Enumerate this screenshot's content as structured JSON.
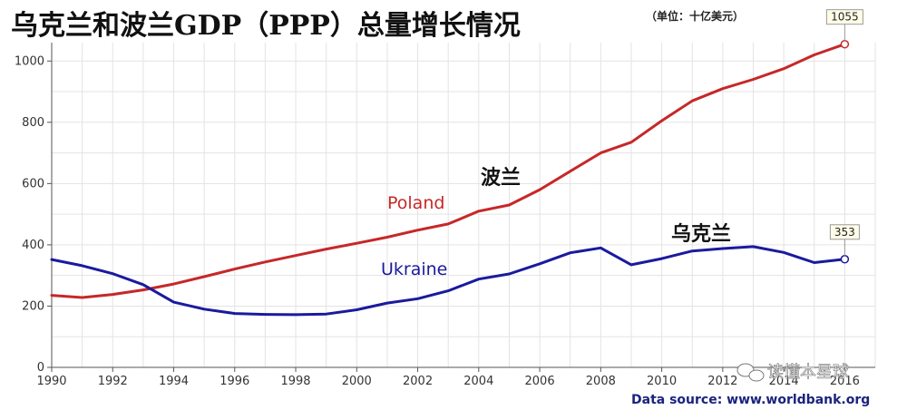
{
  "chart_data": {
    "type": "line",
    "title": "乌克兰和波兰GDP（PPP）总量增长情况",
    "unit_note": "（单位：十亿美元）",
    "x": [
      1990,
      1991,
      1992,
      1993,
      1994,
      1995,
      1996,
      1997,
      1998,
      1999,
      2000,
      2001,
      2002,
      2003,
      2004,
      2005,
      2006,
      2007,
      2008,
      2009,
      2010,
      2011,
      2012,
      2013,
      2014,
      2015,
      2016
    ],
    "xticks": [
      "1990",
      "1992",
      "1994",
      "1996",
      "1998",
      "2000",
      "2002",
      "2004",
      "2006",
      "2008",
      "2010",
      "2012",
      "2014",
      "2016"
    ],
    "yticks": [
      "0",
      "200",
      "400",
      "600",
      "800",
      "1000"
    ],
    "xlim": [
      1990,
      2017
    ],
    "ylim": [
      0,
      1060
    ],
    "grid": true,
    "series": [
      {
        "name": "Poland",
        "alt_label": "波兰",
        "color": "#c62828",
        "values": [
          235,
          228,
          238,
          253,
          272,
          296,
          321,
          344,
          365,
          386,
          405,
          425,
          448,
          468,
          510,
          530,
          580,
          640,
          700,
          735,
          805,
          870,
          910,
          940,
          975,
          1020,
          1055
        ],
        "end_label": "1055"
      },
      {
        "name": "Ukraine",
        "alt_label": "乌克兰",
        "color": "#1a1a9e",
        "values": [
          352,
          332,
          306,
          270,
          213,
          190,
          176,
          173,
          172,
          174,
          188,
          210,
          224,
          250,
          288,
          305,
          338,
          374,
          390,
          335,
          355,
          380,
          388,
          394,
          375,
          342,
          353
        ],
        "end_label": "353"
      }
    ],
    "source": "Data source: www.worldbank.org"
  },
  "watermark": "读懂本星球",
  "watermark_icon": "wechat-icon"
}
